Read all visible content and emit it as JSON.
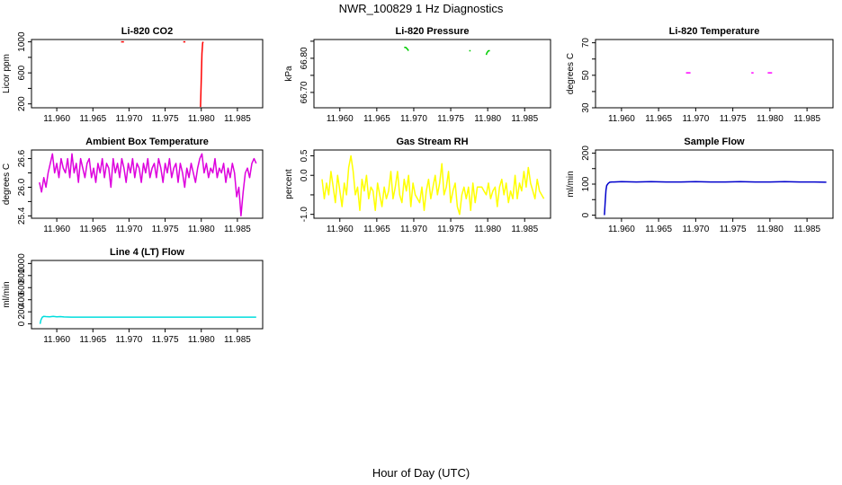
{
  "figure": {
    "title": "NWR_100829  1 Hz Diagnostics",
    "xlabel": "Hour of Day (UTC)"
  },
  "chart_data": [
    {
      "type": "line",
      "title": "Li-820 CO2",
      "ylabel": "Licor ppm",
      "color": "#ff0000",
      "xlim": [
        11.9565,
        11.9885
      ],
      "ylim": [
        150,
        1030
      ],
      "xticks": [
        11.96,
        11.965,
        11.97,
        11.975,
        11.98,
        11.985
      ],
      "xtick_labels": [
        "11.960",
        "11.965",
        "11.970",
        "11.975",
        "11.980",
        "11.985"
      ],
      "yticks": [
        200,
        600,
        1000
      ],
      "ytick_labels": [
        "200",
        "600",
        "1000"
      ],
      "yticks_minor": [
        400,
        800
      ],
      "series": [
        {
          "x": [
            11.9689,
            11.9693
          ],
          "y": [
            1000,
            1000
          ]
        },
        {
          "x": [
            11.9775,
            11.9778
          ],
          "y": [
            1000,
            1000
          ]
        },
        {
          "x": [
            11.9799,
            11.98,
            11.9801,
            11.9802,
            11.9803
          ],
          "y": [
            160,
            500,
            850,
            990,
            1000
          ]
        }
      ]
    },
    {
      "type": "line",
      "title": "Li-820 Pressure",
      "ylabel": "kPa",
      "color": "#00cc00",
      "xlim": [
        11.9565,
        11.9885
      ],
      "ylim": [
        66.655,
        66.855
      ],
      "xticks": [
        11.96,
        11.965,
        11.97,
        11.975,
        11.98,
        11.985
      ],
      "xtick_labels": [
        "11.960",
        "11.965",
        "11.970",
        "11.975",
        "11.980",
        "11.985"
      ],
      "yticks": [
        66.7,
        66.8
      ],
      "ytick_labels": [
        "66.70",
        "66.80"
      ],
      "yticks_minor": [
        66.75,
        66.85
      ],
      "series": [
        {
          "x": [
            11.9687,
            11.9689,
            11.9691,
            11.9693
          ],
          "y": [
            66.832,
            66.832,
            66.828,
            66.822
          ]
        },
        {
          "x": [
            11.9775,
            11.9777
          ],
          "y": [
            66.822,
            66.822
          ]
        },
        {
          "x": [
            11.9798,
            11.9799,
            11.98,
            11.9801,
            11.9803
          ],
          "y": [
            66.81,
            66.816,
            66.819,
            66.822,
            66.822
          ]
        }
      ]
    },
    {
      "type": "line",
      "title": "Li-820 Temperature",
      "ylabel": "degrees C",
      "color": "#ff00ff",
      "xlim": [
        11.9565,
        11.9885
      ],
      "ylim": [
        30,
        72
      ],
      "xticks": [
        11.96,
        11.965,
        11.97,
        11.975,
        11.98,
        11.985
      ],
      "xtick_labels": [
        "11.960",
        "11.965",
        "11.970",
        "11.975",
        "11.980",
        "11.985"
      ],
      "yticks": [
        30,
        50,
        70
      ],
      "ytick_labels": [
        "30",
        "50",
        "70"
      ],
      "yticks_minor": [
        40,
        60
      ],
      "series": [
        {
          "x": [
            11.9687,
            11.9693
          ],
          "y": [
            51.5,
            51.5
          ]
        },
        {
          "x": [
            11.9775,
            11.9778
          ],
          "y": [
            51.5,
            51.5
          ]
        },
        {
          "x": [
            11.9797,
            11.9803
          ],
          "y": [
            51.5,
            51.5
          ]
        }
      ]
    },
    {
      "type": "line",
      "title": "Ambient Box Temperature",
      "ylabel": "degrees C",
      "color": "#dd00dd",
      "xlim": [
        11.9565,
        11.9885
      ],
      "ylim": [
        25.35,
        26.78
      ],
      "xticks": [
        11.96,
        11.965,
        11.97,
        11.975,
        11.98,
        11.985
      ],
      "xtick_labels": [
        "11.960",
        "11.965",
        "11.970",
        "11.975",
        "11.980",
        "11.985"
      ],
      "yticks": [
        25.4,
        26.0,
        26.6
      ],
      "ytick_labels": [
        "25.4",
        "26.0",
        "26.6"
      ],
      "yticks_minor": [
        25.7,
        26.3
      ],
      "series": [
        {
          "x": [
            11.9576,
            11.9579,
            11.9582,
            11.9585,
            11.9588,
            11.9591,
            11.9594,
            11.9597,
            11.96,
            11.9603,
            11.9606,
            11.9609,
            11.9612,
            11.9615,
            11.9618,
            11.9621,
            11.9624,
            11.9627,
            11.963,
            11.9633,
            11.9636,
            11.9639,
            11.9642,
            11.9645,
            11.9648,
            11.9651,
            11.9654,
            11.9657,
            11.966,
            11.9663,
            11.9666,
            11.9669,
            11.9672,
            11.9675,
            11.9678,
            11.9681,
            11.9684,
            11.9687,
            11.969,
            11.9693,
            11.9696,
            11.9699,
            11.9702,
            11.9705,
            11.9708,
            11.9711,
            11.9714,
            11.9717,
            11.972,
            11.9723,
            11.9726,
            11.9729,
            11.9732,
            11.9735,
            11.9738,
            11.9741,
            11.9744,
            11.9747,
            11.975,
            11.9753,
            11.9756,
            11.9759,
            11.9762,
            11.9765,
            11.9768,
            11.9771,
            11.9774,
            11.9777,
            11.978,
            11.9783,
            11.9786,
            11.9789,
            11.9792,
            11.9795,
            11.9798,
            11.9801,
            11.9804,
            11.9807,
            11.981,
            11.9813,
            11.9816,
            11.9819,
            11.9822,
            11.9825,
            11.9828,
            11.9831,
            11.9834,
            11.9837,
            11.984,
            11.9843,
            11.9846,
            11.9849,
            11.9852,
            11.9855,
            11.9858,
            11.9861,
            11.9864,
            11.9867,
            11.987,
            11.9873,
            11.9876
          ],
          "y": [
            26.1,
            25.9,
            26.2,
            26.0,
            26.3,
            26.5,
            26.7,
            26.3,
            26.5,
            26.2,
            26.6,
            26.4,
            26.3,
            26.6,
            26.2,
            26.7,
            26.3,
            26.5,
            26.1,
            26.6,
            26.4,
            26.2,
            26.5,
            26.6,
            26.2,
            26.4,
            26.1,
            26.5,
            26.3,
            26.6,
            26.2,
            26.5,
            26.4,
            26.0,
            26.6,
            26.3,
            26.5,
            26.2,
            26.6,
            26.4,
            26.1,
            26.5,
            26.3,
            26.6,
            26.2,
            26.5,
            26.4,
            26.1,
            26.5,
            26.3,
            26.6,
            26.2,
            26.4,
            26.5,
            26.2,
            26.6,
            26.4,
            26.1,
            26.5,
            26.3,
            26.6,
            26.2,
            26.4,
            26.5,
            26.1,
            26.5,
            26.3,
            26.0,
            26.4,
            26.2,
            26.5,
            26.3,
            26.1,
            26.4,
            26.6,
            26.7,
            26.3,
            26.5,
            26.2,
            26.4,
            26.3,
            26.6,
            26.2,
            26.4,
            26.3,
            26.5,
            26.1,
            26.4,
            26.2,
            26.5,
            26.3,
            25.8,
            26.0,
            25.4,
            25.9,
            26.3,
            26.4,
            26.2,
            26.5,
            26.6,
            26.5
          ]
        }
      ]
    },
    {
      "type": "line",
      "title": "Gas Stream RH",
      "ylabel": "percent",
      "color": "#ffff00",
      "xlim": [
        11.9565,
        11.9885
      ],
      "ylim": [
        -1.1,
        0.65
      ],
      "xticks": [
        11.96,
        11.965,
        11.97,
        11.975,
        11.98,
        11.985
      ],
      "xtick_labels": [
        "11.960",
        "11.965",
        "11.970",
        "11.975",
        "11.980",
        "11.985"
      ],
      "yticks": [
        -1.0,
        0.0,
        0.5
      ],
      "ytick_labels": [
        "-1.0",
        "0.0",
        "0.5"
      ],
      "yticks_minor": [
        -0.5
      ],
      "series": [
        {
          "x": [
            11.9576,
            11.9579,
            11.9582,
            11.9585,
            11.9588,
            11.9591,
            11.9594,
            11.9597,
            11.96,
            11.9603,
            11.9606,
            11.9609,
            11.9612,
            11.9615,
            11.9618,
            11.9621,
            11.9624,
            11.9627,
            11.963,
            11.9633,
            11.9636,
            11.9639,
            11.9642,
            11.9645,
            11.9648,
            11.9651,
            11.9654,
            11.9657,
            11.966,
            11.9663,
            11.9666,
            11.9669,
            11.9672,
            11.9675,
            11.9678,
            11.9681,
            11.9684,
            11.9687,
            11.969,
            11.9693,
            11.9696,
            11.9699,
            11.9702,
            11.9705,
            11.9708,
            11.9711,
            11.9714,
            11.9717,
            11.972,
            11.9723,
            11.9726,
            11.9729,
            11.9732,
            11.9735,
            11.9738,
            11.9741,
            11.9744,
            11.9747,
            11.975,
            11.9753,
            11.9756,
            11.9759,
            11.9762,
            11.9765,
            11.9768,
            11.9771,
            11.9774,
            11.9777,
            11.978,
            11.9783,
            11.9786,
            11.9789,
            11.9792,
            11.9795,
            11.9798,
            11.9801,
            11.9804,
            11.9807,
            11.981,
            11.9813,
            11.9816,
            11.9819,
            11.9822,
            11.9825,
            11.9828,
            11.9831,
            11.9834,
            11.9837,
            11.984,
            11.9843,
            11.9846,
            11.9849,
            11.9852,
            11.9855,
            11.9858,
            11.9861,
            11.9864,
            11.9867,
            11.987,
            11.9873,
            11.9876
          ],
          "y": [
            -0.1,
            -0.6,
            -0.2,
            -0.5,
            0.1,
            -0.3,
            -0.7,
            0.0,
            -0.4,
            -0.8,
            -0.2,
            -0.5,
            0.2,
            0.5,
            0.1,
            -0.5,
            -0.3,
            -0.9,
            -0.1,
            -0.4,
            0.0,
            -0.6,
            -0.3,
            -0.4,
            -0.9,
            -0.2,
            -0.5,
            -0.8,
            -0.3,
            -0.6,
            -0.4,
            0.1,
            -0.6,
            -0.3,
            0.1,
            -0.5,
            -0.7,
            -0.1,
            -0.4,
            0.0,
            -0.8,
            -0.2,
            -0.5,
            -0.6,
            -0.7,
            -0.3,
            -0.9,
            -0.4,
            -0.1,
            -0.6,
            -0.3,
            0.0,
            -0.5,
            -0.2,
            0.3,
            -0.5,
            -0.3,
            0.1,
            -0.7,
            -0.4,
            -0.2,
            -0.8,
            -1.0,
            -0.5,
            -0.3,
            -0.6,
            -0.3,
            -0.9,
            -0.2,
            -0.7,
            -0.3,
            -0.3,
            -0.3,
            -0.4,
            -0.5,
            -0.2,
            -0.6,
            -0.4,
            -0.3,
            -0.8,
            -0.3,
            -0.1,
            -0.5,
            -0.2,
            -0.7,
            -0.4,
            -0.6,
            0.0,
            -0.6,
            -0.2,
            -0.4,
            0.1,
            -0.3,
            0.2,
            -0.2,
            -0.4,
            -0.6,
            -0.1,
            -0.4,
            -0.5,
            -0.6
          ]
        }
      ]
    },
    {
      "type": "line",
      "title": "Sample Flow",
      "ylabel": "ml/min",
      "color": "#0000cc",
      "xlim": [
        11.9565,
        11.9885
      ],
      "ylim": [
        -10,
        210
      ],
      "xticks": [
        11.96,
        11.965,
        11.97,
        11.975,
        11.98,
        11.985
      ],
      "xtick_labels": [
        "11.960",
        "11.965",
        "11.970",
        "11.975",
        "11.980",
        "11.985"
      ],
      "yticks": [
        0,
        100,
        200
      ],
      "ytick_labels": [
        "0",
        "100",
        "200"
      ],
      "yticks_minor": [
        50,
        150
      ],
      "series": [
        {
          "x": [
            11.9577,
            11.9578,
            11.9579,
            11.958,
            11.9582,
            11.9584,
            11.9587,
            11.959,
            11.96,
            11.962,
            11.964,
            11.966,
            11.968,
            11.97,
            11.972,
            11.974,
            11.976,
            11.978,
            11.98,
            11.982,
            11.984,
            11.986,
            11.9876
          ],
          "y": [
            0,
            40,
            80,
            95,
            102,
            106,
            107,
            107,
            108,
            107,
            108,
            107,
            107,
            108,
            107,
            107,
            108,
            107,
            107,
            108,
            107,
            107,
            106
          ]
        }
      ]
    },
    {
      "type": "line",
      "title": "Line 4 (LT) Flow",
      "ylabel": "ml/min",
      "color": "#00dddd",
      "xlim": [
        11.9565,
        11.9885
      ],
      "ylim": [
        -80,
        1050
      ],
      "xticks": [
        11.96,
        11.965,
        11.97,
        11.975,
        11.98,
        11.985
      ],
      "xtick_labels": [
        "11.960",
        "11.965",
        "11.970",
        "11.975",
        "11.980",
        "11.985"
      ],
      "yticks": [
        0,
        200,
        400,
        600,
        800,
        1000
      ],
      "ytick_labels": [
        "0",
        "200",
        "400",
        "600",
        "800",
        "1000"
      ],
      "yticks_minor": [],
      "series": [
        {
          "x": [
            11.9577,
            11.9578,
            11.958,
            11.9582,
            11.9585,
            11.959,
            11.9595,
            11.96,
            11.9605,
            11.961,
            11.962,
            11.964,
            11.966,
            11.968,
            11.97,
            11.972,
            11.974,
            11.976,
            11.978,
            11.98,
            11.982,
            11.984,
            11.986,
            11.9876
          ],
          "y": [
            0,
            60,
            110,
            125,
            120,
            118,
            124,
            116,
            120,
            115,
            112,
            112,
            112,
            112,
            112,
            112,
            112,
            112,
            112,
            112,
            112,
            112,
            112,
            112
          ]
        }
      ]
    }
  ]
}
